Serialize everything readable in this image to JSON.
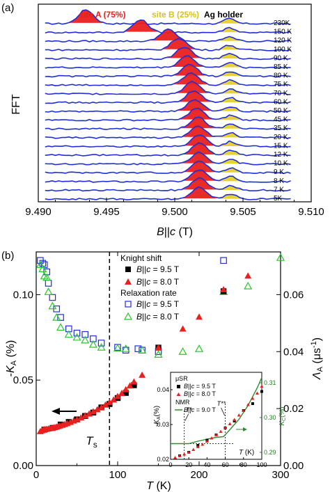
{
  "chart_data": [
    {
      "panel_label": "(a)",
      "type": "line",
      "ylabel": "FFT",
      "xlabel_parts": [
        "B",
        "||",
        "c",
        " (T)"
      ],
      "xlim": [
        9.49,
        9.51
      ],
      "xticks": [
        "9.490",
        "9.495",
        "9.500",
        "9.505",
        "9.510"
      ],
      "annotations": {
        "site_a": "site A (75%)",
        "site_b": "site B (25%)",
        "holder": "Ag holder"
      },
      "colors": {
        "spectra": "#1f2fd8",
        "site_a": "#e8201f",
        "site_b": "#e6cf2e",
        "site_a_label": "#e8201f",
        "site_b_label": "#d6c21a"
      },
      "series": [
        {
          "name": "230K",
          "peak_a": 9.4935,
          "amp_a": 1.0,
          "peak_b": 9.504
        },
        {
          "name": "150 K",
          "peak_a": 9.4975,
          "amp_a": 0.9,
          "peak_b": 9.504
        },
        {
          "name": "120 K",
          "peak_a": 9.4995,
          "amp_a": 0.85,
          "peak_b": 9.504
        },
        {
          "name": "100 K",
          "peak_a": 9.5003,
          "amp_a": 0.85,
          "peak_b": 9.504
        },
        {
          "name": "90 K",
          "peak_a": 9.5007,
          "amp_a": 0.85,
          "peak_b": 9.504
        },
        {
          "name": "85 K",
          "peak_a": 9.5009,
          "amp_a": 0.85,
          "peak_b": 9.504
        },
        {
          "name": "80 K",
          "peak_a": 9.5011,
          "amp_a": 0.85,
          "peak_b": 9.5041
        },
        {
          "name": "75 K",
          "peak_a": 9.5012,
          "amp_a": 0.85,
          "peak_b": 9.5041
        },
        {
          "name": "70 K",
          "peak_a": 9.5013,
          "amp_a": 0.85,
          "peak_b": 9.5041
        },
        {
          "name": "60 K",
          "peak_a": 9.5014,
          "amp_a": 0.85,
          "peak_b": 9.5041
        },
        {
          "name": "50 K",
          "peak_a": 9.5015,
          "amp_a": 0.85,
          "peak_b": 9.5041
        },
        {
          "name": "45 K",
          "peak_a": 9.5016,
          "amp_a": 0.85,
          "peak_b": 9.5041
        },
        {
          "name": "35 K",
          "peak_a": 9.5017,
          "amp_a": 0.85,
          "peak_b": 9.5041
        },
        {
          "name": "20 K",
          "peak_a": 9.5017,
          "amp_a": 0.85,
          "peak_b": 9.5041
        },
        {
          "name": "15 K",
          "peak_a": 9.5018,
          "amp_a": 0.85,
          "peak_b": 9.5041
        },
        {
          "name": "12 K",
          "peak_a": 9.5018,
          "amp_a": 0.85,
          "peak_b": 9.5041
        },
        {
          "name": "10 K",
          "peak_a": 9.5018,
          "amp_a": 0.85,
          "peak_b": 9.5041
        },
        {
          "name": "9 K",
          "peak_a": 9.5018,
          "amp_a": 0.85,
          "peak_b": 9.5041
        },
        {
          "name": "8 K",
          "peak_a": 9.5018,
          "amp_a": 0.85,
          "peak_b": 9.5041
        },
        {
          "name": "7 K",
          "peak_a": 9.5018,
          "amp_a": 0.85,
          "peak_b": 9.5041
        },
        {
          "name": "5K",
          "peak_a": 9.5018,
          "amp_a": 0.85,
          "peak_b": 9.5041
        }
      ]
    },
    {
      "panel_label": "(b)",
      "type": "scatter",
      "xlabel": "T (K)",
      "ylabel_left": "-K_A (%)",
      "ylabel_right": "Λ_A (μs⁻¹)",
      "xlim": [
        0,
        300
      ],
      "ylim_left": [
        0,
        0.125
      ],
      "ylim_right": [
        0,
        0.075
      ],
      "xticks": [
        "0",
        "100",
        "200",
        "300"
      ],
      "yticks_left": [
        "0.00",
        "0.05",
        "0.10"
      ],
      "yticks_right": [
        "0.00",
        "0.02",
        "0.04",
        "0.06"
      ],
      "ts_line": {
        "x": 90,
        "label": "T",
        "label_sub": "s"
      },
      "legend": {
        "knight_title": "Knight shift",
        "relax_title": "Relaxation rate",
        "prefix": "B||c = ",
        "entries": [
          "9.5 T",
          "8.0 T",
          "9.5 T",
          "8.0 T"
        ]
      },
      "series": [
        {
          "id": "knight_95",
          "axis": "left",
          "marker": "filled-square",
          "color": "#000000",
          "points": [
            [
              10,
              0.021
            ],
            [
              20,
              0.022
            ],
            [
              30,
              0.024
            ],
            [
              40,
              0.0255
            ],
            [
              50,
              0.027
            ],
            [
              60,
              0.029
            ],
            [
              70,
              0.031
            ],
            [
              80,
              0.034
            ],
            [
              90,
              0.036
            ],
            [
              100,
              0.0395
            ],
            [
              110,
              0.0425
            ],
            [
              120,
              0.047
            ],
            [
              150,
              0.069
            ],
            [
              230,
              0.102
            ]
          ]
        },
        {
          "id": "knight_80",
          "axis": "left",
          "marker": "filled-triangle",
          "color": "#e8201f",
          "points": [
            [
              5,
              0.02
            ],
            [
              7,
              0.0205
            ],
            [
              9,
              0.021
            ],
            [
              11,
              0.0212
            ],
            [
              13,
              0.0214
            ],
            [
              15,
              0.0216
            ],
            [
              17,
              0.0218
            ],
            [
              19,
              0.022
            ],
            [
              21,
              0.0222
            ],
            [
              23,
              0.0224
            ],
            [
              25,
              0.0227
            ],
            [
              27,
              0.023
            ],
            [
              29,
              0.0233
            ],
            [
              32,
              0.0237
            ],
            [
              35,
              0.0242
            ],
            [
              38,
              0.0247
            ],
            [
              42,
              0.0254
            ],
            [
              46,
              0.0262
            ],
            [
              50,
              0.027
            ],
            [
              55,
              0.028
            ],
            [
              60,
              0.0292
            ],
            [
              65,
              0.0303
            ],
            [
              70,
              0.0316
            ],
            [
              75,
              0.0328
            ],
            [
              80,
              0.034
            ],
            [
              85,
              0.0355
            ],
            [
              90,
              0.037
            ],
            [
              95,
              0.0385
            ],
            [
              100,
              0.0405
            ],
            [
              105,
              0.0423
            ],
            [
              110,
              0.0445
            ],
            [
              115,
              0.0467
            ],
            [
              120,
              0.049
            ],
            [
              130,
              0.053
            ],
            [
              150,
              0.069
            ],
            [
              180,
              0.08
            ],
            [
              200,
              0.087
            ],
            [
              230,
              0.103
            ],
            [
              260,
              0.111
            ]
          ]
        },
        {
          "id": "relax_95",
          "axis": "right",
          "marker": "open-square",
          "color": "#1f2fd8",
          "points": [
            [
              5,
              0.072
            ],
            [
              8,
              0.071
            ],
            [
              10,
              0.0705
            ],
            [
              13,
              0.068
            ],
            [
              15,
              0.064
            ],
            [
              20,
              0.059
            ],
            [
              25,
              0.055
            ],
            [
              30,
              0.052
            ],
            [
              40,
              0.048
            ],
            [
              50,
              0.0465
            ],
            [
              60,
              0.046
            ],
            [
              70,
              0.0445
            ],
            [
              80,
              0.043
            ],
            [
              100,
              0.0415
            ],
            [
              110,
              0.0405
            ],
            [
              125,
              0.041
            ],
            [
              130,
              0.0405
            ],
            [
              150,
              0.04
            ],
            [
              230,
              0.072
            ]
          ]
        },
        {
          "id": "relax_80",
          "axis": "right",
          "marker": "open-triangle",
          "color": "#29c42b",
          "points": [
            [
              5,
              0.0705
            ],
            [
              8,
              0.069
            ],
            [
              10,
              0.0665
            ],
            [
              13,
              0.066
            ],
            [
              15,
              0.061
            ],
            [
              20,
              0.056
            ],
            [
              25,
              0.052
            ],
            [
              30,
              0.0485
            ],
            [
              40,
              0.046
            ],
            [
              50,
              0.045
            ],
            [
              60,
              0.044
            ],
            [
              70,
              0.0425
            ],
            [
              80,
              0.0415
            ],
            [
              100,
              0.0412
            ],
            [
              110,
              0.041
            ],
            [
              130,
              0.0405
            ],
            [
              150,
              0.039
            ],
            [
              180,
              0.04
            ],
            [
              200,
              0.041
            ],
            [
              230,
              0.061
            ],
            [
              260,
              0.063
            ],
            [
              300,
              0.073
            ]
          ]
        }
      ],
      "inset": {
        "xlabel": "T (K)",
        "ylabel_left": "-K_A(%)",
        "ylabel_right": "K_C(%)",
        "xlim": [
          0,
          100
        ],
        "ylim_left": [
          0.02,
          0.045
        ],
        "ylim_right": [
          0.288,
          0.313
        ],
        "xticks": [
          "0",
          "20",
          "40",
          "60",
          "80",
          "100"
        ],
        "yticks_left": [
          "0.02",
          "0.03",
          "0.04"
        ],
        "yticks_right": [
          "0.29",
          "0.30",
          "0.31"
        ],
        "legend": {
          "musr": "μSR",
          "nmr": "NMR",
          "prefix": "B||c = ",
          "entries": [
            "9.5 T",
            "8.0 T",
            "9.0 T"
          ]
        },
        "markers": {
          "t_star": "T*",
          "t_star2": "T**",
          "t_star_x": 15,
          "t_star2_x": 60
        },
        "colors": {
          "nmr_line": "#2e8b2e",
          "right_axis": "#1f7f1f"
        },
        "musr_95": [
          [
            10,
            0.021
          ],
          [
            20,
            0.022
          ],
          [
            30,
            0.024
          ],
          [
            40,
            0.0255
          ],
          [
            50,
            0.027
          ],
          [
            60,
            0.029
          ],
          [
            70,
            0.031
          ],
          [
            80,
            0.034
          ],
          [
            90,
            0.036
          ],
          [
            100,
            0.0395
          ]
        ],
        "musr_80": [
          [
            5,
            0.0205
          ],
          [
            10,
            0.021
          ],
          [
            15,
            0.0215
          ],
          [
            20,
            0.022
          ],
          [
            25,
            0.0228
          ],
          [
            30,
            0.0236
          ],
          [
            35,
            0.0243
          ],
          [
            40,
            0.0252
          ],
          [
            45,
            0.0261
          ],
          [
            50,
            0.027
          ],
          [
            55,
            0.028
          ],
          [
            60,
            0.0291
          ],
          [
            65,
            0.0302
          ],
          [
            70,
            0.0314
          ],
          [
            75,
            0.0327
          ],
          [
            80,
            0.034
          ],
          [
            85,
            0.0357
          ],
          [
            90,
            0.0375
          ],
          [
            95,
            0.039
          ],
          [
            100,
            0.041
          ]
        ],
        "nmr_90": [
          [
            0,
            0.2925
          ],
          [
            10,
            0.2925
          ],
          [
            20,
            0.2925
          ],
          [
            30,
            0.2932
          ],
          [
            40,
            0.2938
          ],
          [
            50,
            0.2943
          ],
          [
            58,
            0.2945
          ],
          [
            65,
            0.2965
          ],
          [
            75,
            0.2995
          ],
          [
            85,
            0.3035
          ],
          [
            95,
            0.3085
          ],
          [
            100,
            0.3115
          ]
        ]
      }
    }
  ]
}
